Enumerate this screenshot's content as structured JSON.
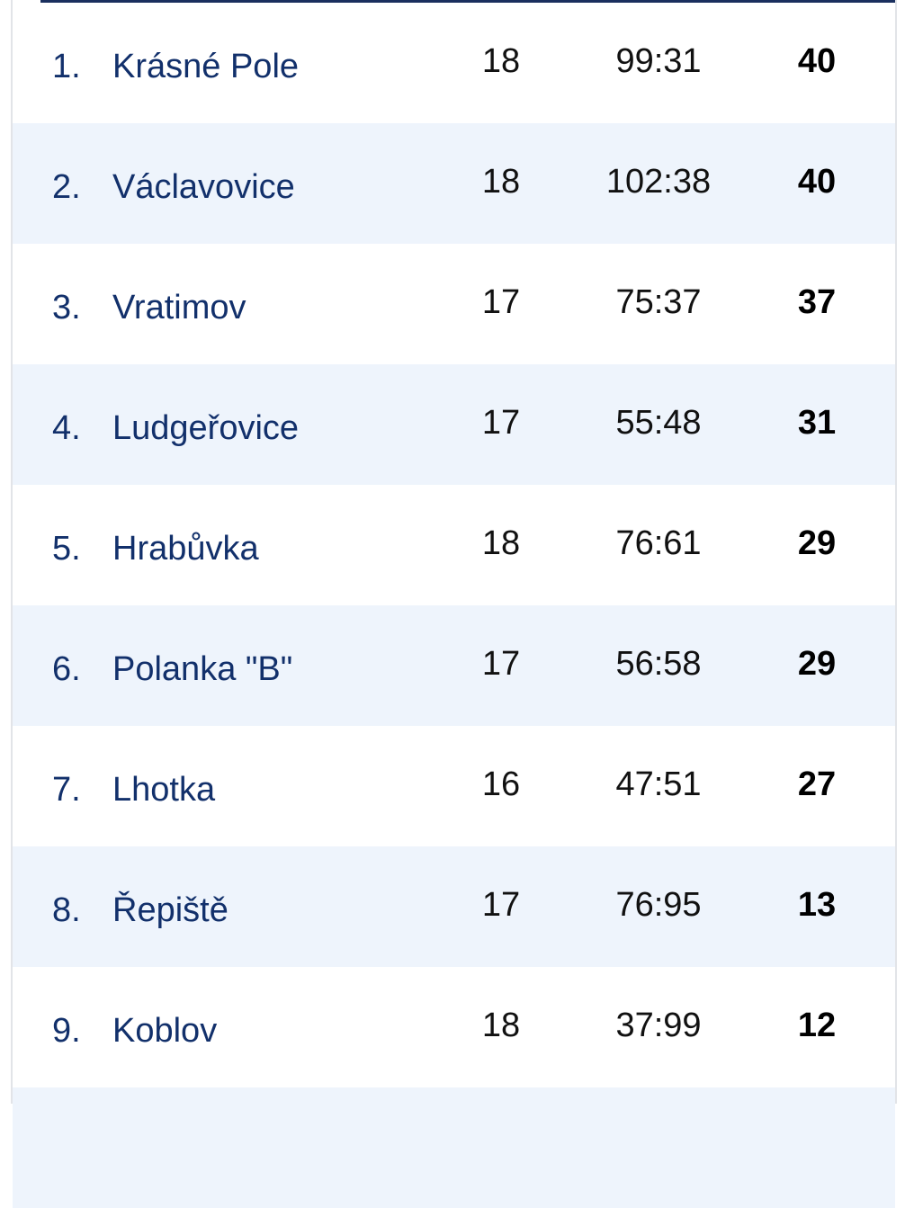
{
  "table": {
    "rows": [
      [
        "1.",
        "Krásné Pole",
        18,
        "99:31",
        40
      ],
      [
        "2.",
        "Václavovice",
        18,
        "102:38",
        40
      ],
      [
        "3.",
        "Vratimov",
        17,
        "75:37",
        37
      ],
      [
        "4.",
        "Ludgeřovice",
        17,
        "55:48",
        31
      ],
      [
        "5.",
        "Hrabůvka",
        18,
        "76:61",
        29
      ],
      [
        "6.",
        "Polanka \"B\"",
        17,
        "56:58",
        29
      ],
      [
        "7.",
        "Lhotka",
        16,
        "47:51",
        27
      ],
      [
        "8.",
        "Řepiště",
        17,
        "76:95",
        13
      ],
      [
        "9.",
        "Koblov",
        18,
        "37:99",
        12
      ]
    ]
  }
}
